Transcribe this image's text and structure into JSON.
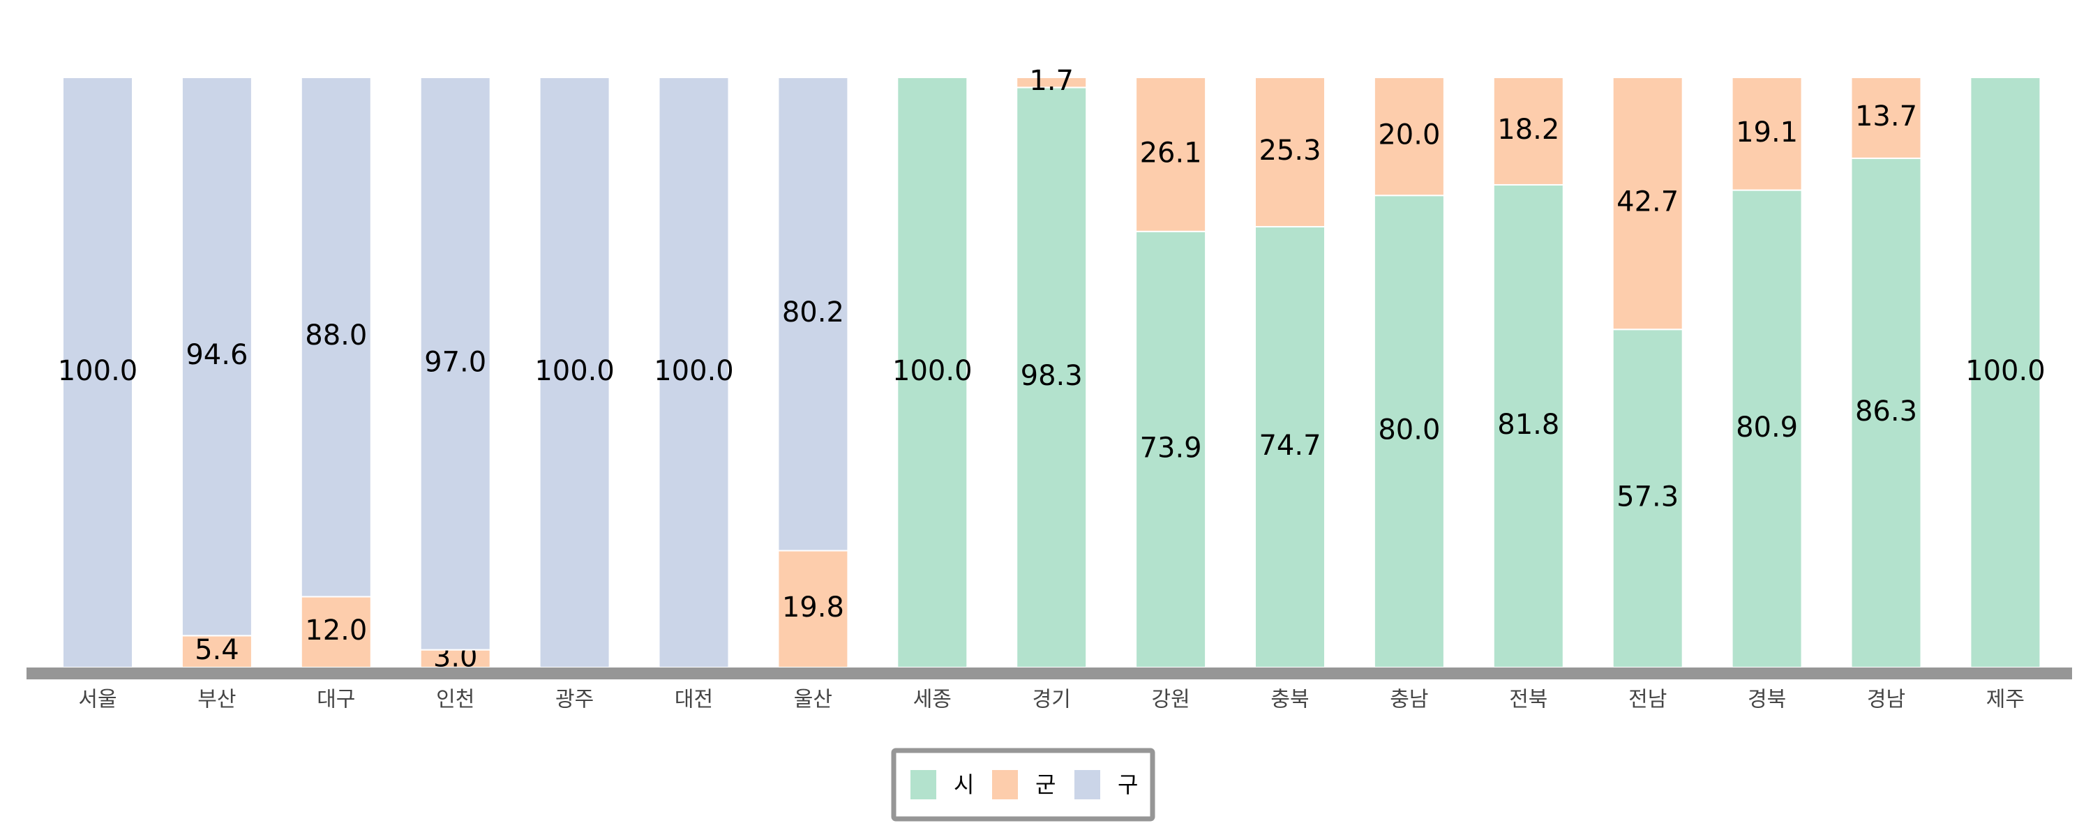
{
  "chart_data": {
    "type": "bar",
    "stacked": true,
    "percent": true,
    "categories": [
      "서울",
      "부산",
      "대구",
      "인천",
      "광주",
      "대전",
      "울산",
      "세종",
      "경기",
      "강원",
      "충북",
      "충남",
      "전북",
      "전남",
      "경북",
      "경남",
      "제주"
    ],
    "series": [
      {
        "name": "시",
        "color": "#b3e2cd",
        "values": [
          0,
          0,
          0,
          0,
          0,
          0,
          0,
          100.0,
          98.3,
          73.9,
          74.7,
          80.0,
          81.8,
          57.3,
          80.9,
          86.3,
          100.0
        ]
      },
      {
        "name": "군",
        "color": "#fdcdac",
        "values": [
          0,
          5.4,
          12.0,
          3.0,
          0,
          0,
          19.8,
          0,
          1.7,
          26.1,
          25.3,
          20.0,
          18.2,
          42.7,
          19.1,
          13.7,
          0
        ]
      },
      {
        "name": "구",
        "color": "#cbd5e8",
        "values": [
          100.0,
          94.6,
          88.0,
          97.0,
          100.0,
          100.0,
          80.2,
          0,
          0,
          0,
          0,
          0,
          0,
          0,
          0,
          0,
          0
        ]
      }
    ],
    "ylim": [
      0,
      100
    ],
    "grid": false,
    "legend_position": "bottom",
    "axis_color": "#969696"
  }
}
